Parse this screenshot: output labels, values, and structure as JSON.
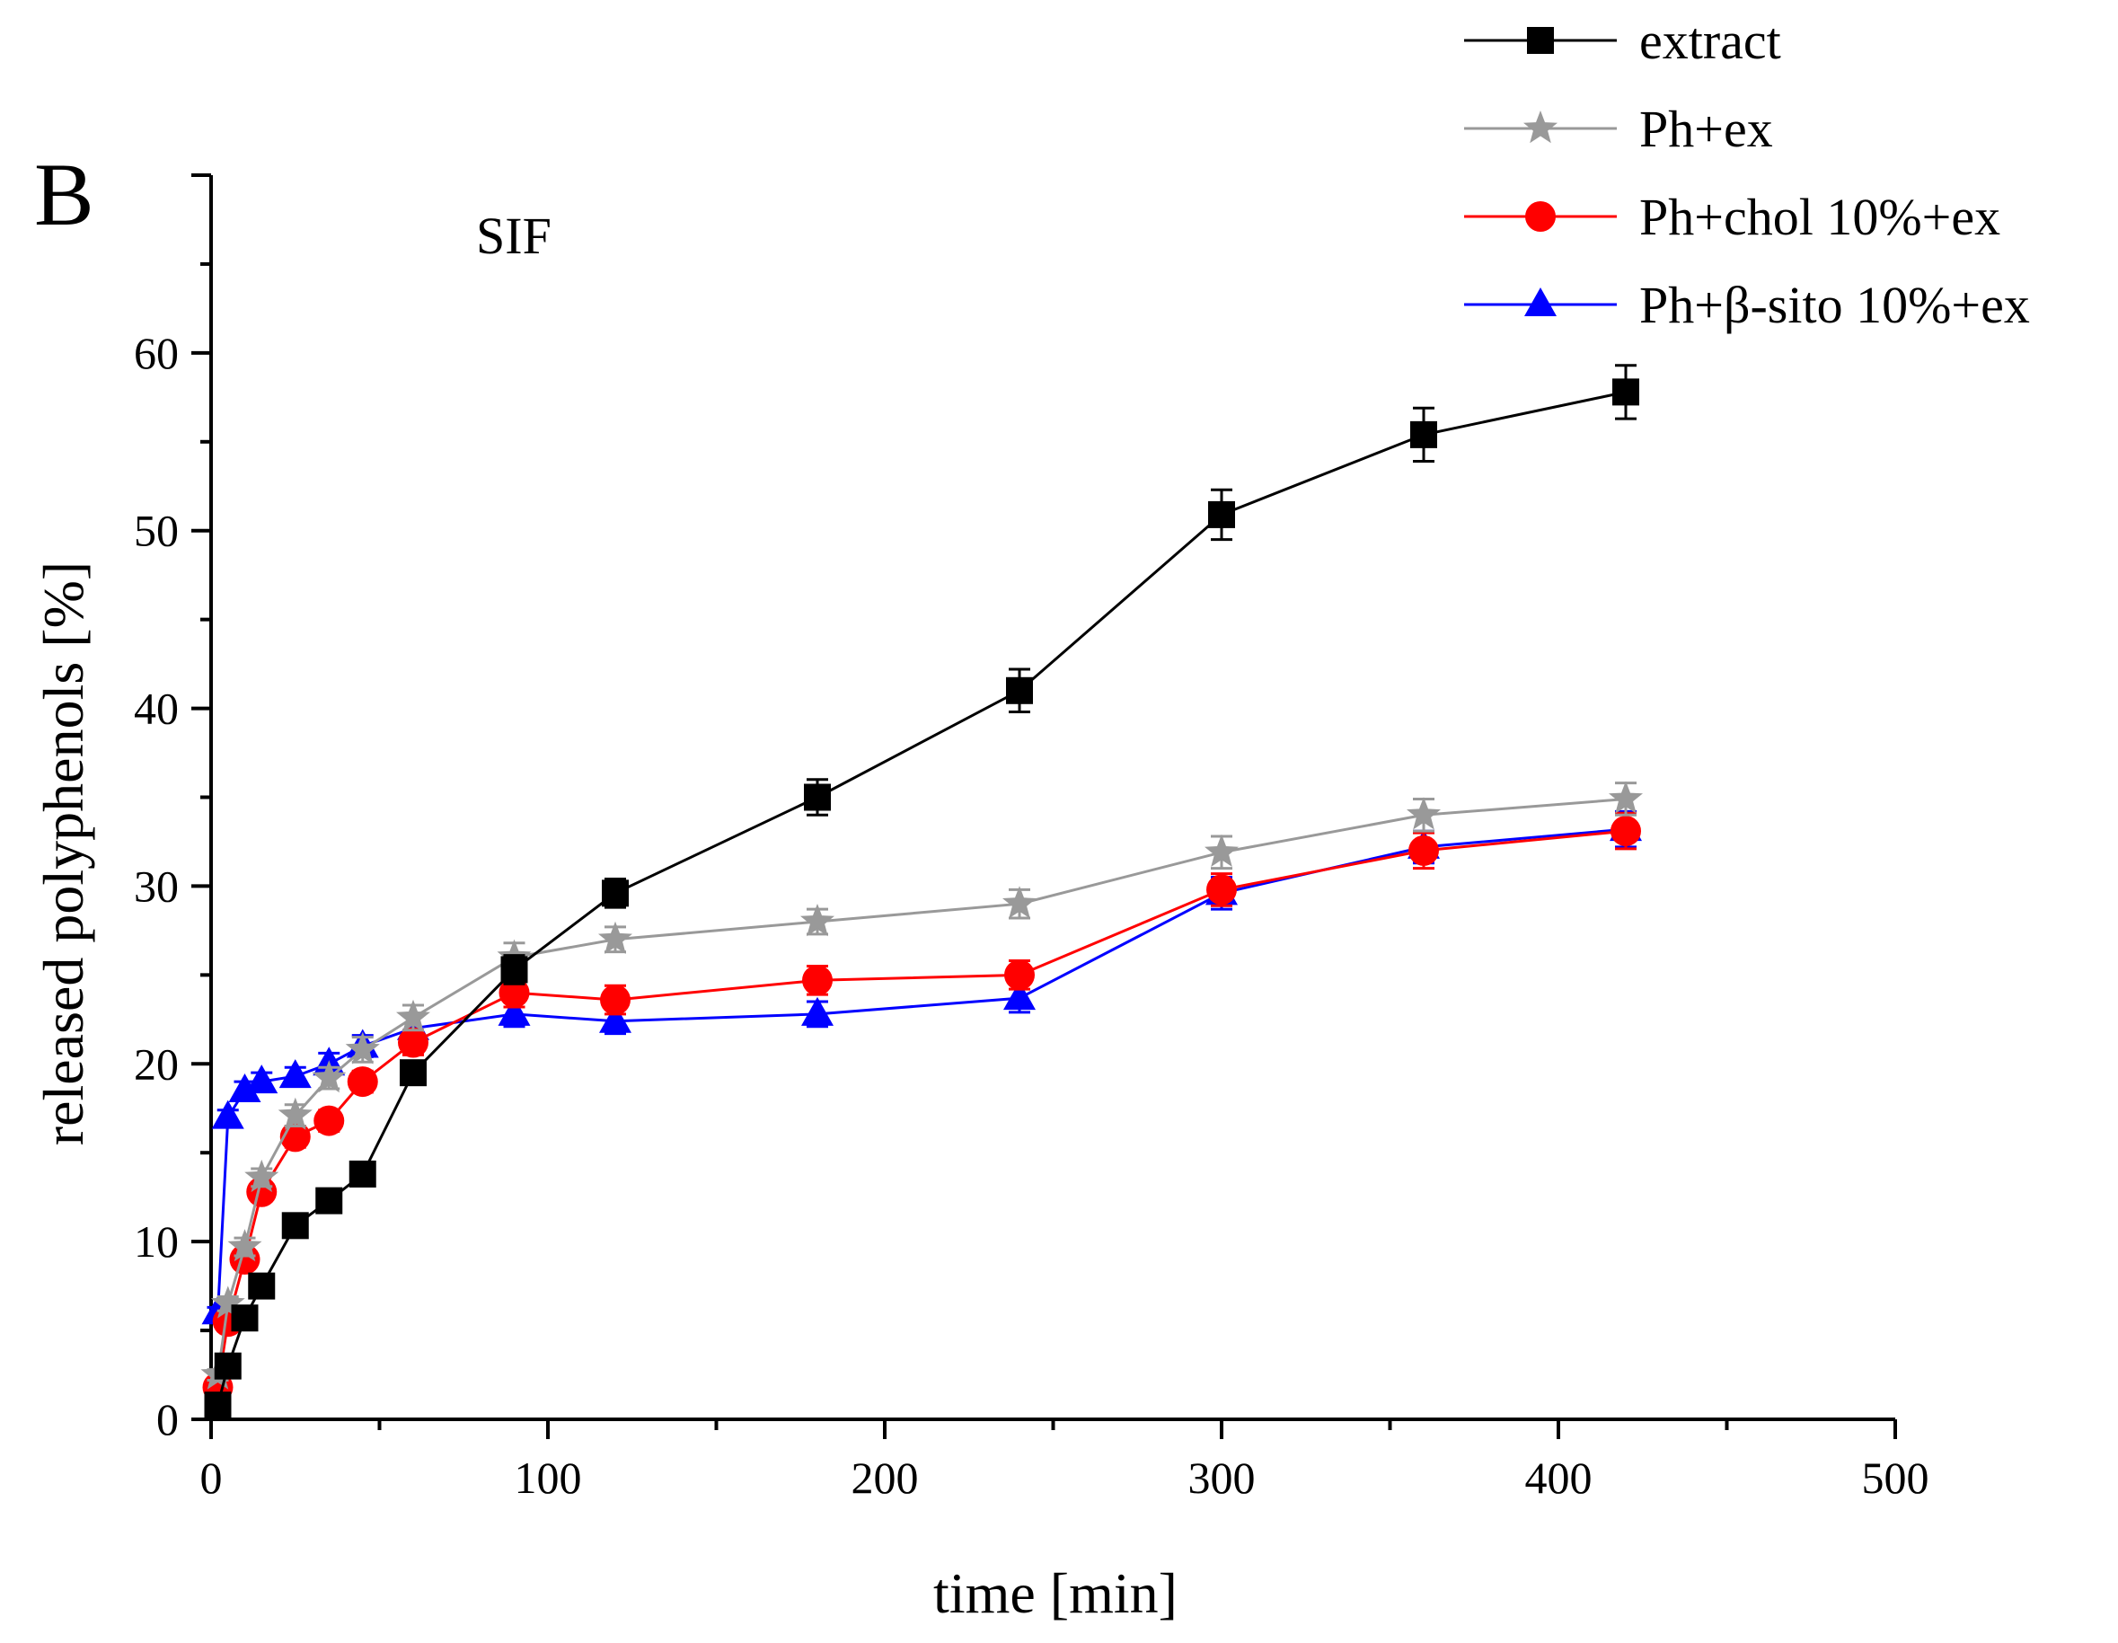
{
  "panel_label": "B",
  "chart_data": {
    "type": "line",
    "xlabel": "time [min]",
    "ylabel": "released polyphenols [%]",
    "annotation": "SIF",
    "xlim": [
      0,
      500
    ],
    "ylim": [
      0,
      70
    ],
    "xticks": [
      0,
      100,
      200,
      300,
      400,
      500
    ],
    "yticks": [
      0,
      10,
      20,
      30,
      40,
      50,
      60
    ],
    "grid": false,
    "legend_position": "top-right",
    "series": [
      {
        "name": "extract",
        "color": "#000000",
        "marker": "square",
        "x": [
          2,
          5,
          10,
          15,
          25,
          35,
          45,
          60,
          90,
          120,
          180,
          240,
          300,
          360,
          420
        ],
        "y": [
          0.8,
          3.0,
          5.7,
          7.5,
          10.9,
          12.3,
          13.8,
          19.5,
          25.3,
          29.6,
          35.0,
          41.0,
          50.9,
          55.4,
          57.8
        ],
        "err": [
          0.3,
          0.3,
          0.4,
          0.4,
          0.4,
          0.4,
          0.5,
          0.6,
          0.8,
          0.8,
          1.0,
          1.2,
          1.4,
          1.5,
          1.5
        ]
      },
      {
        "name": "Ph+ex",
        "color": "#999999",
        "marker": "star",
        "x": [
          2,
          5,
          10,
          15,
          25,
          35,
          45,
          60,
          90,
          120,
          180,
          240,
          300,
          360,
          420
        ],
        "y": [
          2.5,
          6.5,
          9.7,
          13.6,
          17.1,
          19.2,
          20.8,
          22.6,
          26.0,
          27.0,
          28.0,
          29.0,
          31.9,
          34.0,
          34.9
        ],
        "err": [
          0.3,
          0.4,
          0.5,
          0.5,
          0.6,
          0.6,
          0.7,
          0.7,
          0.8,
          0.7,
          0.7,
          0.8,
          0.9,
          0.9,
          0.9
        ]
      },
      {
        "name": "Ph+chol 10%+ex",
        "color": "#ff0000",
        "marker": "circle",
        "x": [
          2,
          5,
          10,
          15,
          25,
          35,
          45,
          60,
          90,
          120,
          180,
          240,
          300,
          360,
          420
        ],
        "y": [
          1.8,
          5.5,
          9.0,
          12.8,
          15.9,
          16.8,
          19.0,
          21.2,
          24.0,
          23.6,
          24.7,
          25.0,
          29.8,
          32.0,
          33.1
        ],
        "err": [
          0.3,
          0.4,
          0.5,
          0.5,
          0.6,
          0.6,
          0.6,
          0.7,
          0.8,
          0.8,
          0.8,
          0.8,
          0.9,
          1.0,
          1.0
        ]
      },
      {
        "name": "Ph+β-sito 10%+ex",
        "color": "#0000ff",
        "marker": "triangle",
        "x": [
          2,
          5,
          10,
          15,
          25,
          35,
          45,
          60,
          90,
          120,
          180,
          240,
          300,
          360,
          420
        ],
        "y": [
          6.0,
          17.0,
          18.5,
          19.0,
          19.3,
          20.0,
          21.0,
          22.0,
          22.8,
          22.4,
          22.8,
          23.7,
          29.6,
          32.2,
          33.2
        ],
        "err": [
          0.3,
          0.4,
          0.5,
          0.5,
          0.5,
          0.6,
          0.6,
          0.7,
          0.7,
          0.7,
          0.7,
          0.8,
          0.9,
          0.9,
          1.0
        ]
      }
    ]
  }
}
